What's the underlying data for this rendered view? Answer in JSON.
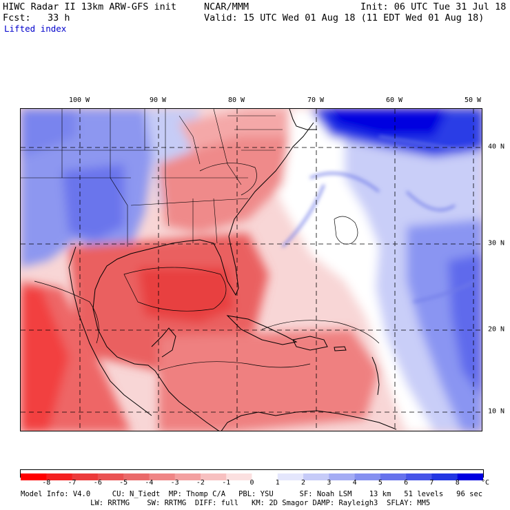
{
  "header": {
    "line1_left": "HIWC Radar II 13km ARW-GFS init",
    "line1_mid": "NCAR/MMM",
    "line1_right": "Init: 06 UTC Tue 31 Jul 18",
    "line2_left": "Fcst:   33 h",
    "line2_right": "Valid: 15 UTC Wed 01 Aug 18 (11 EDT Wed 01 Aug 18)",
    "field": "Lifted index"
  },
  "map": {
    "lon_labels": [
      "100 W",
      "90 W",
      "80 W",
      "70 W",
      "60 W",
      "50 W"
    ],
    "lat_labels": [
      "40 N",
      "30 N",
      "20 N",
      "10 N"
    ],
    "colors": {
      "strong_neg": "#ff0000",
      "neg": "#e85050",
      "weak_neg": "#f4a0a0",
      "neutral": "#ffffff",
      "weak_pos": "#c8d0f8",
      "pos": "#6070ee",
      "strong_pos": "#0000e0"
    }
  },
  "colorbar": {
    "values": [
      "-8",
      "-7",
      "-6",
      "-5",
      "-4",
      "-3",
      "-2",
      "-1",
      "0",
      "1",
      "2",
      "3",
      "4",
      "5",
      "6",
      "7",
      "8"
    ],
    "unit": "°C",
    "colors": [
      "#ff0000",
      "#f42020",
      "#ec3b3b",
      "#ea5353",
      "#ea6a6a",
      "#ef8585",
      "#f3a0a0",
      "#f7c0c0",
      "#fbe0e0",
      "#ffffff",
      "#e4e6fc",
      "#c6cbf8",
      "#a4acf4",
      "#8590f0",
      "#6672ec",
      "#4654e8",
      "#2236e2",
      "#0000e0"
    ]
  },
  "footer": {
    "line1": "Model Info: V4.0     CU: N_Tiedt  MP: Thomp C/A   PBL: YSU      SF: Noah LSM    13 km   51 levels   96 sec",
    "line2": "                LW: RRTMG    SW: RRTMG  DIFF: full   KM: 2D Smagor DAMP: Rayleigh3  SFLAY: MM5"
  }
}
